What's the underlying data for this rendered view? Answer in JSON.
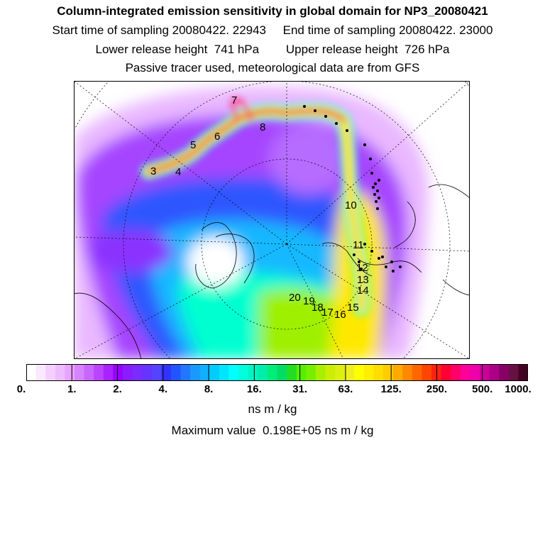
{
  "header": {
    "title": "Column-integrated emission sensitivity in global domain for NP3_20080421",
    "line2": "Start time of sampling 20080422. 22943     End time of sampling 20080422. 23000",
    "line3": "Lower release height  741 hPa        Upper release height  726 hPa",
    "line4": "Passive tracer used, meteorological data are from GFS"
  },
  "track_labels": [
    {
      "text": "3"
    },
    {
      "text": "4"
    },
    {
      "text": "5"
    },
    {
      "text": "6"
    },
    {
      "text": "7"
    },
    {
      "text": "8"
    },
    {
      "text": "10"
    },
    {
      "text": "11"
    },
    {
      "text": "12"
    },
    {
      "text": "13"
    },
    {
      "text": "14"
    },
    {
      "text": "15"
    },
    {
      "text": "16"
    },
    {
      "text": "17"
    },
    {
      "text": "18"
    },
    {
      "text": "19"
    },
    {
      "text": "20"
    }
  ],
  "colorbar": {
    "labels": [
      "0.",
      "1.",
      "2.",
      "4.",
      "8.",
      "16.",
      "31.",
      "63.",
      "125.",
      "250.",
      "500.",
      "1000."
    ],
    "colors": [
      "#ffffff",
      "#fbe8ff",
      "#f5d0ff",
      "#eebbff",
      "#e7a3ff",
      "#d683ff",
      "#c966ff",
      "#bb44ff",
      "#aa22ff",
      "#9900ff",
      "#8a1dff",
      "#7a2cff",
      "#6633ff",
      "#5544ff",
      "#3333ff",
      "#2255ff",
      "#2277ff",
      "#1999ff",
      "#11b0ff",
      "#00ccff",
      "#00e5ff",
      "#00ffff",
      "#00ffdd",
      "#00f5c0",
      "#00eeaa",
      "#00ee77",
      "#00dd66",
      "#22dd22",
      "#55ee00",
      "#77ee00",
      "#aaee00",
      "#ccee00",
      "#ddee11",
      "#eeee22",
      "#ffff00",
      "#ffee00",
      "#ffdd00",
      "#ffcc00",
      "#ffaa00",
      "#ff8800",
      "#ff6600",
      "#ff4400",
      "#ff2211",
      "#ff0033",
      "#ff0066",
      "#ff0099",
      "#ee00aa",
      "#cc0099",
      "#aa0088",
      "#880066",
      "#661144",
      "#440022"
    ],
    "unit": "ns m / kg"
  },
  "max_value": "Maximum value  0.198E+05 ns m / kg"
}
